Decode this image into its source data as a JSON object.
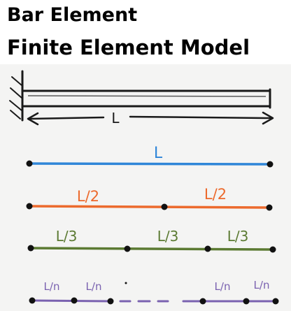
{
  "title": {
    "line1": "Bar Element",
    "line2": "Finite Element Model"
  },
  "diagram": {
    "length_label": "L",
    "colors": {
      "ink": "#1a1a1a",
      "blue": "#2f86d8",
      "orange": "#ec6a2d",
      "green": "#5b7a32",
      "purple": "#7a62b0"
    },
    "meshes": [
      {
        "name": "one-element",
        "color": "blue",
        "labels": [
          "L"
        ]
      },
      {
        "name": "two-elements",
        "color": "orange",
        "labels": [
          "L/2",
          "L/2"
        ]
      },
      {
        "name": "three-elements",
        "color": "green",
        "labels": [
          "L/3",
          "L/3",
          "L/3"
        ]
      },
      {
        "name": "n-elements",
        "color": "purple",
        "labels": [
          "L/n",
          "L/n",
          "L/n",
          "L/n"
        ]
      }
    ]
  }
}
